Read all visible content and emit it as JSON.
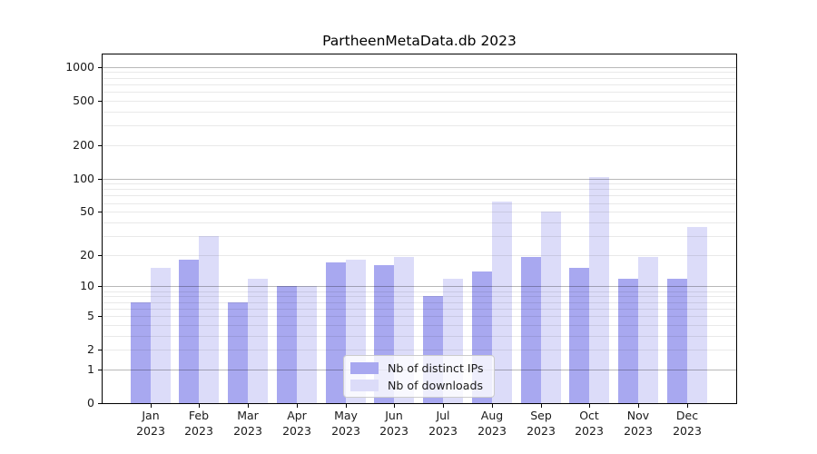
{
  "chart_data": {
    "type": "bar",
    "title": "PartheenMetaData.db 2023",
    "categories": [
      "Jan",
      "Feb",
      "Mar",
      "Apr",
      "May",
      "Jun",
      "Jul",
      "Aug",
      "Sep",
      "Oct",
      "Nov",
      "Dec"
    ],
    "x_tick_year": "2023",
    "series": [
      {
        "name": "Nb of distinct IPs",
        "color": "#a8a8f0",
        "values": [
          7,
          18,
          7,
          10,
          17,
          16,
          8,
          14,
          19,
          15,
          12,
          12
        ]
      },
      {
        "name": "Nb of downloads",
        "color": "#dcdcf9",
        "values": [
          15,
          30,
          12,
          10,
          18,
          19,
          12,
          62,
          50,
          103,
          19,
          36
        ]
      }
    ],
    "y_ticks": [
      0,
      1,
      2,
      5,
      10,
      20,
      50,
      100,
      200,
      500,
      1000
    ],
    "y_scale": "log10(1+y)",
    "ylim": [
      0,
      1290
    ],
    "grid": {
      "major": [
        1,
        10,
        100,
        1000
      ],
      "minor": [
        2,
        3,
        4,
        5,
        6,
        7,
        8,
        9,
        20,
        30,
        40,
        50,
        60,
        70,
        80,
        90,
        200,
        300,
        400,
        500,
        600,
        700,
        800,
        900
      ]
    },
    "legend_position": "lower center (inside plot)"
  }
}
